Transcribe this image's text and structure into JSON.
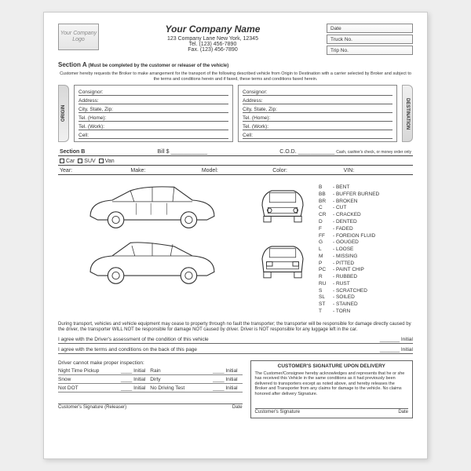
{
  "header": {
    "logo_text": "Your Company Logo",
    "company_name": "Your Company Name",
    "address": "123 Company Lane New York, 12345",
    "tel": "Tel. (123) 456-7890",
    "fax": "Fax. (123) 456-7890",
    "meta": {
      "date": "Date",
      "truck_no": "Truck No.",
      "trip_no": "Trip No."
    }
  },
  "section_a": {
    "label": "Section A",
    "sub": "(Must be completed by the customer or releaser of the vehicle)",
    "fine_print": "Customer hereby requests the Broker to make arrangement for the transport of the following described vehicle from Origin to Destination with a carrier selected by Broker and subject to the terms and conditions herein and if faxed, these terms and conditions faxed herein.",
    "origin_label": "ORIGIN",
    "destination_label": "DESTINATION",
    "fields": [
      "Consignor:",
      "Address:",
      "City, State, Zip:",
      "Tel. (Home):",
      "Tel. (Work):",
      "Cell:"
    ]
  },
  "section_b": {
    "label": "Section B",
    "bill_label": "Bill $",
    "cod_label": "C.O.D.",
    "cod_sub": "Cash, cashier's check, or money order only",
    "types": [
      "Car",
      "SUV",
      "Van"
    ],
    "specs": [
      "Year:",
      "Make:",
      "Model:",
      "Color:",
      "VIN:"
    ]
  },
  "legend": [
    {
      "code": "B",
      "desc": "BENT"
    },
    {
      "code": "BB",
      "desc": "BUFFER BURNED"
    },
    {
      "code": "BR",
      "desc": "BROKEN"
    },
    {
      "code": "C",
      "desc": "CUT"
    },
    {
      "code": "CR",
      "desc": "CRACKED"
    },
    {
      "code": "D",
      "desc": "DENTED"
    },
    {
      "code": "F",
      "desc": "FADED"
    },
    {
      "code": "FF",
      "desc": "FOREIGN FLUID"
    },
    {
      "code": "G",
      "desc": "GOUGED"
    },
    {
      "code": "L",
      "desc": "LOOSE"
    },
    {
      "code": "M",
      "desc": "MISSING"
    },
    {
      "code": "P",
      "desc": "PITTED"
    },
    {
      "code": "PC",
      "desc": "PAINT CHIP"
    },
    {
      "code": "R",
      "desc": "RUBBED"
    },
    {
      "code": "RU",
      "desc": "RUST"
    },
    {
      "code": "S",
      "desc": "SCRATCHED"
    },
    {
      "code": "SL",
      "desc": "SOILED"
    },
    {
      "code": "ST",
      "desc": "STAINED"
    },
    {
      "code": "T",
      "desc": "TORN"
    }
  ],
  "disclaimer": "During transport, vehicles and vehicle equipment may cease to property through no fault the transporter; the transporter will be responsible for damage directly caused by the driver, the transporter WILL NOT be responsible for damage NOT caused by driver. Driver is NOT responsible for any luggage left in the car.",
  "agree1": "I agree with the Driver's assessment of the condition of this vehicle",
  "agree2": "I agree with the terms and conditions on the back of this page",
  "initial": "Initial",
  "inspect": {
    "heading": "Driver cannot make proper inspection:",
    "items_left": [
      "Night Time Pickup",
      "Snow",
      "Not DOT"
    ],
    "items_right": [
      "Rain",
      "Dirty",
      "No Driving Test"
    ]
  },
  "sig_release": {
    "left": "Customer's Signature (Releaser)",
    "right": "Date"
  },
  "delivery_box": {
    "title": "CUSTOMER'S SIGNATURE UPON DELIVERY",
    "text": "The Customer/Consignee hereby acknowledges and represents that he or she has received this Vehicle in the same conditions as it had previously been delivered to transporters except as noted above, and hereby releases the Broker and Transporter from any claims for damage to the vehicle. No claims honored after delivery Signature.",
    "sig_left": "Customer's Signature",
    "sig_right": "Date"
  }
}
